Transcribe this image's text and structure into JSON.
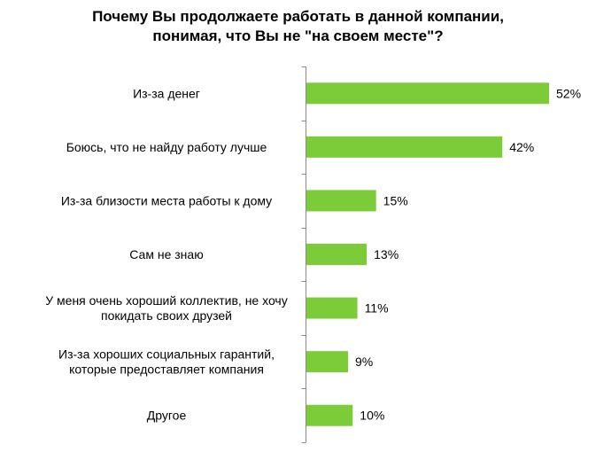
{
  "chart_data": {
    "type": "bar",
    "orientation": "horizontal",
    "title_lines": [
      "Почему Вы продолжаете работать в данной компании,",
      "понимая, что Вы не \"на своем месте\"?"
    ],
    "categories": [
      [
        "Из-за денег"
      ],
      [
        "Боюсь, что не найду работу лучше"
      ],
      [
        "Из-за близости места работы к дому"
      ],
      [
        "Сам не знаю"
      ],
      [
        "У меня очень хороший коллектив, не хочу",
        "покидать своих друзей"
      ],
      [
        "Из-за хороших социальных гарантий,",
        "которые предоставляет компания"
      ],
      [
        "Другое"
      ]
    ],
    "values": [
      52,
      42,
      15,
      13,
      11,
      9,
      10
    ],
    "value_labels": [
      "52%",
      "42%",
      "15%",
      "13%",
      "11%",
      "9%",
      "10%"
    ],
    "xlabel": "",
    "ylabel": "",
    "grid": false,
    "legend": "none",
    "bar_color": "#7ccc3a",
    "axis_color": "#8c8c8c"
  }
}
